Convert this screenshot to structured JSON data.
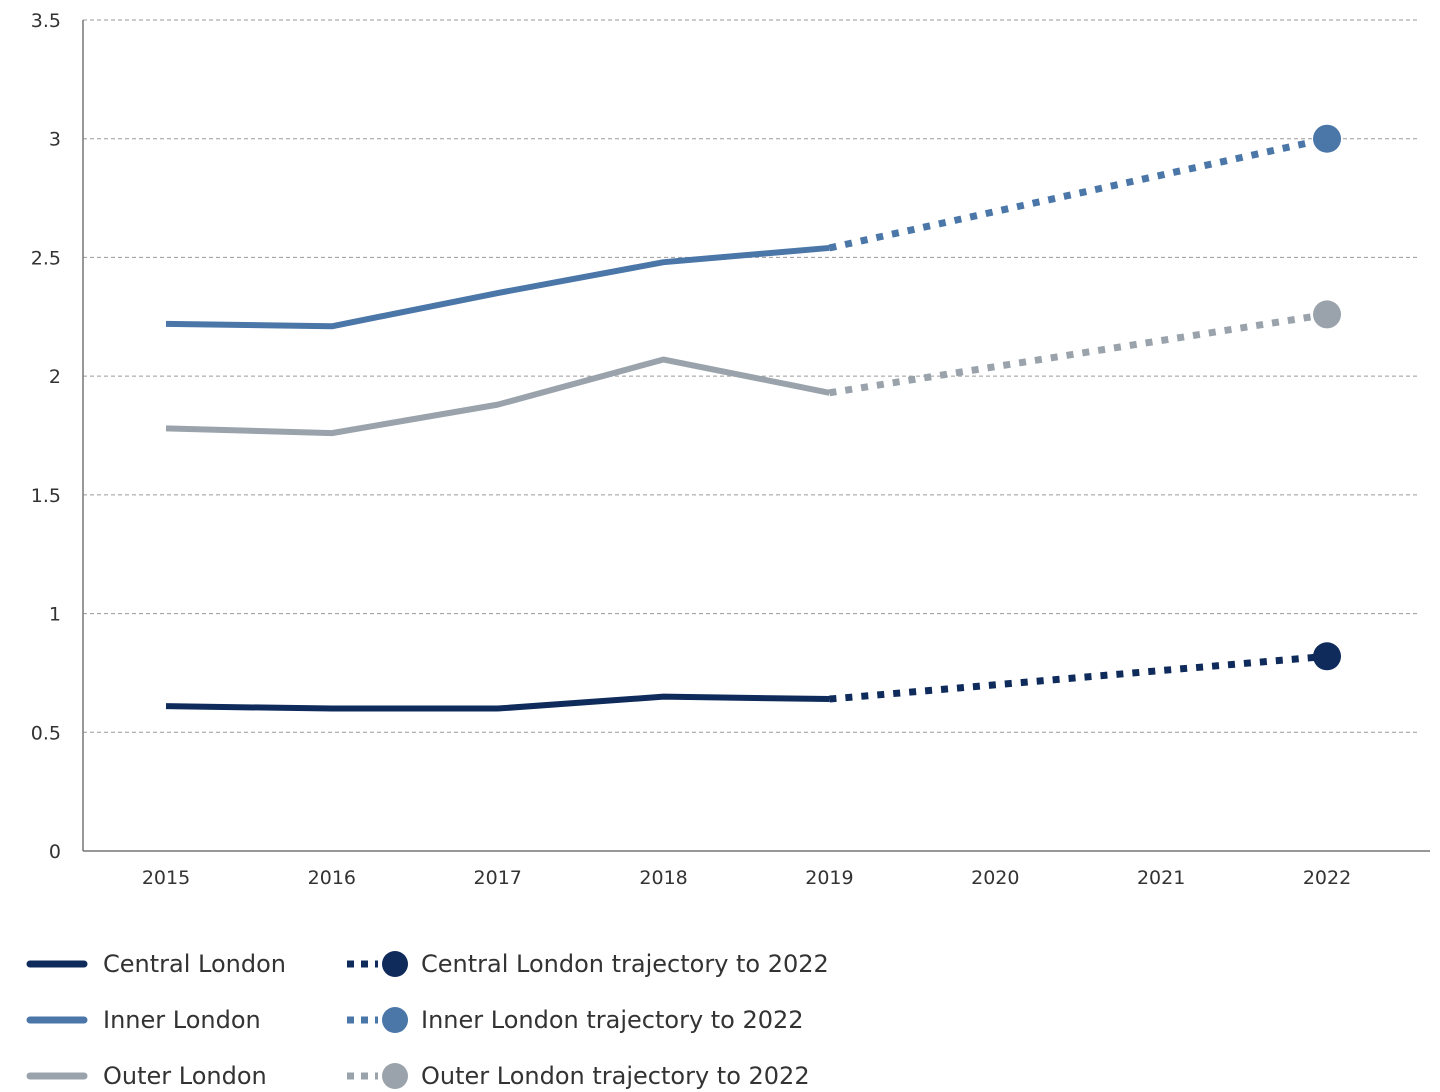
{
  "chart_data": {
    "type": "line",
    "title": "",
    "xlabel": "",
    "ylabel": "",
    "ylim": [
      0,
      3.5
    ],
    "yticks": [
      "0",
      "0.5",
      "1",
      "1.5",
      "2",
      "2.5",
      "3",
      "3.5"
    ],
    "x": [
      "2015",
      "2016",
      "2017",
      "2018",
      "2019",
      "2020",
      "2021",
      "2022"
    ],
    "grid": "horizontal-dashed",
    "legend_position": "bottom",
    "series": [
      {
        "name": "Central London",
        "style": "solid",
        "color": "#0f2b5b",
        "x": [
          "2015",
          "2016",
          "2017",
          "2018",
          "2019"
        ],
        "values": [
          0.61,
          0.6,
          0.6,
          0.65,
          0.64
        ]
      },
      {
        "name": "Inner London",
        "style": "solid",
        "color": "#4a76a8",
        "x": [
          "2015",
          "2016",
          "2017",
          "2018",
          "2019"
        ],
        "values": [
          2.22,
          2.21,
          2.35,
          2.48,
          2.54
        ]
      },
      {
        "name": "Outer London",
        "style": "solid",
        "color": "#9aa3ab",
        "x": [
          "2015",
          "2016",
          "2017",
          "2018",
          "2019"
        ],
        "values": [
          1.78,
          1.76,
          1.88,
          2.07,
          1.93
        ]
      },
      {
        "name": "Central London trajectory to 2022",
        "style": "dotted",
        "color": "#0f2b5b",
        "x": [
          "2019",
          "2022"
        ],
        "values": [
          0.64,
          0.82
        ]
      },
      {
        "name": "Inner London trajectory to 2022",
        "style": "dotted",
        "color": "#4a76a8",
        "x": [
          "2019",
          "2022"
        ],
        "values": [
          2.54,
          3.0
        ]
      },
      {
        "name": "Outer London trajectory to 2022",
        "style": "dotted",
        "color": "#9aa3ab",
        "x": [
          "2019",
          "2022"
        ],
        "values": [
          1.93,
          2.26
        ]
      }
    ]
  }
}
